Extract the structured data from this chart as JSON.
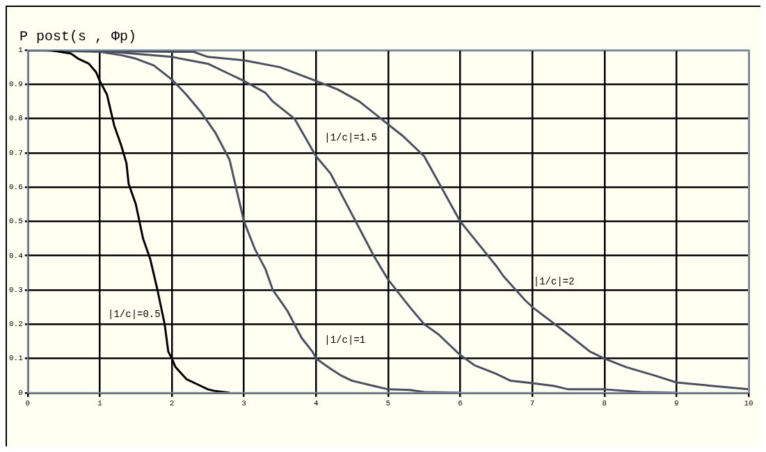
{
  "chart_data": {
    "type": "line",
    "ylabel": "P post(s , Φp)",
    "xlim": [
      0,
      10
    ],
    "xticks": [
      0,
      1,
      2,
      3,
      4,
      5,
      6,
      7,
      8,
      9,
      10
    ],
    "ylim": [
      0,
      1
    ],
    "yticks": [
      0,
      0.1,
      0.2,
      0.3,
      0.4,
      0.5,
      0.6,
      0.7,
      0.8,
      0.9,
      1
    ],
    "grid": true,
    "legend": false,
    "marker": "none",
    "line_style": "solid",
    "series": [
      {
        "color": "#000000",
        "x": [
          0,
          0.3,
          0.6,
          0.7,
          0.85,
          0.95,
          1.0,
          1.1,
          1.2,
          1.3,
          1.37,
          1.4,
          1.5,
          1.6,
          1.7,
          1.8,
          1.9,
          1.95,
          2.0,
          2.05,
          2.2,
          2.35,
          2.5,
          2.6,
          2.8
        ],
        "values": [
          1,
          1,
          0.99,
          0.975,
          0.96,
          0.935,
          0.91,
          0.87,
          0.78,
          0.72,
          0.67,
          0.61,
          0.55,
          0.45,
          0.39,
          0.3,
          0.2,
          0.12,
          0.1,
          0.075,
          0.04,
          0.025,
          0.01,
          0.005,
          0
        ]
      },
      {
        "color": "#4a5060",
        "x": [
          0,
          1,
          1.3,
          1.5,
          1.75,
          2,
          2.2,
          2.4,
          2.6,
          2.8,
          3.0,
          3.15,
          3.3,
          3.4,
          3.6,
          3.8,
          3.95,
          4.0,
          4.2,
          4.35,
          4.5,
          4.8,
          5.0,
          5.3,
          5.5,
          6
        ],
        "values": [
          1,
          0.995,
          0.985,
          0.975,
          0.955,
          0.914,
          0.87,
          0.82,
          0.76,
          0.68,
          0.5,
          0.42,
          0.36,
          0.3,
          0.24,
          0.16,
          0.12,
          0.1,
          0.07,
          0.05,
          0.035,
          0.02,
          0.01,
          0.008,
          0.002,
          0
        ]
      },
      {
        "color": "#4a5060",
        "x": [
          0,
          1,
          2,
          2.5,
          2.8,
          3.0,
          3.3,
          3.4,
          3.7,
          4,
          4.2,
          4.4,
          4.6,
          4.8,
          5.0,
          5.3,
          5.5,
          5.7,
          6.0,
          6.2,
          6.5,
          6.6,
          6.7,
          7,
          7.3,
          7.5,
          8,
          8.5,
          9
        ],
        "values": [
          1,
          0.998,
          0.98,
          0.96,
          0.93,
          0.91,
          0.875,
          0.85,
          0.8,
          0.69,
          0.64,
          0.56,
          0.48,
          0.4,
          0.33,
          0.25,
          0.2,
          0.17,
          0.11,
          0.08,
          0.055,
          0.045,
          0.035,
          0.028,
          0.02,
          0.01,
          0.01,
          0.002,
          0
        ]
      },
      {
        "color": "#4a5060",
        "x": [
          0,
          2,
          2.3,
          2.5,
          3,
          3.5,
          4,
          4.3,
          4.6,
          4.9,
          5.2,
          5.5,
          6,
          6.5,
          6.6,
          6.9,
          7,
          7.5,
          7.8,
          8,
          8.3,
          8.7,
          9,
          9.5,
          10
        ],
        "values": [
          1,
          0.995,
          0.995,
          0.98,
          0.97,
          0.95,
          0.91,
          0.885,
          0.85,
          0.8,
          0.75,
          0.69,
          0.5,
          0.37,
          0.34,
          0.27,
          0.25,
          0.17,
          0.12,
          0.1,
          0.075,
          0.05,
          0.03,
          0.02,
          0.01
        ]
      }
    ],
    "annotations": [
      {
        "text": "|1/c|=0.5",
        "x": 1.9,
        "y": 0.2
      },
      {
        "text": "|1/c|=1",
        "x": 4.0,
        "y": 0.1
      },
      {
        "text": "|1/c|=1.5",
        "x": 4.0,
        "y": 0.69
      },
      {
        "text": "|1/c|=2",
        "x": 6.9,
        "y": 0.27
      }
    ]
  }
}
